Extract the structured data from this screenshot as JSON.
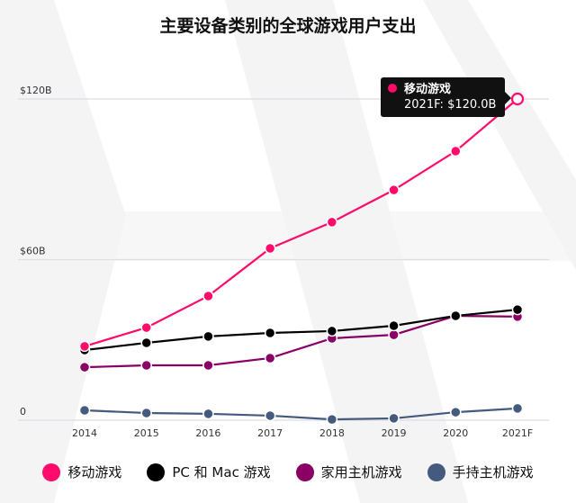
{
  "chart_data": {
    "type": "line",
    "title": "主要设备类别的全球游戏用户支出",
    "categories": [
      "2014",
      "2015",
      "2016",
      "2017",
      "2018",
      "2019",
      "2020",
      "2021F"
    ],
    "y_ticks": [
      "0",
      "$60B",
      "$120B"
    ],
    "ylim": [
      0,
      120
    ],
    "grid": true,
    "legend_position": "bottom",
    "series": [
      {
        "name": "移动游戏",
        "color": "#ff0b6c",
        "values": [
          27.6,
          34.6,
          46.4,
          64.2,
          74.0,
          86.0,
          100.5,
          120.0
        ]
      },
      {
        "name": "PC 和 Mac 游戏",
        "color": "#000000",
        "values": [
          26.2,
          28.9,
          31.3,
          32.6,
          33.3,
          35.3,
          39.0,
          41.3
        ]
      },
      {
        "name": "家用主机游戏",
        "color": "#8b0066",
        "values": [
          19.8,
          20.5,
          20.5,
          23.2,
          30.6,
          31.9,
          39.0,
          38.7
        ]
      },
      {
        "name": "手持主机游戏",
        "color": "#445a7e",
        "values": [
          3.7,
          2.7,
          2.4,
          1.7,
          0.3,
          0.7,
          3.0,
          4.4
        ]
      }
    ],
    "tooltip": {
      "series": "移动游戏",
      "text": "2021F: $120.0B"
    }
  }
}
